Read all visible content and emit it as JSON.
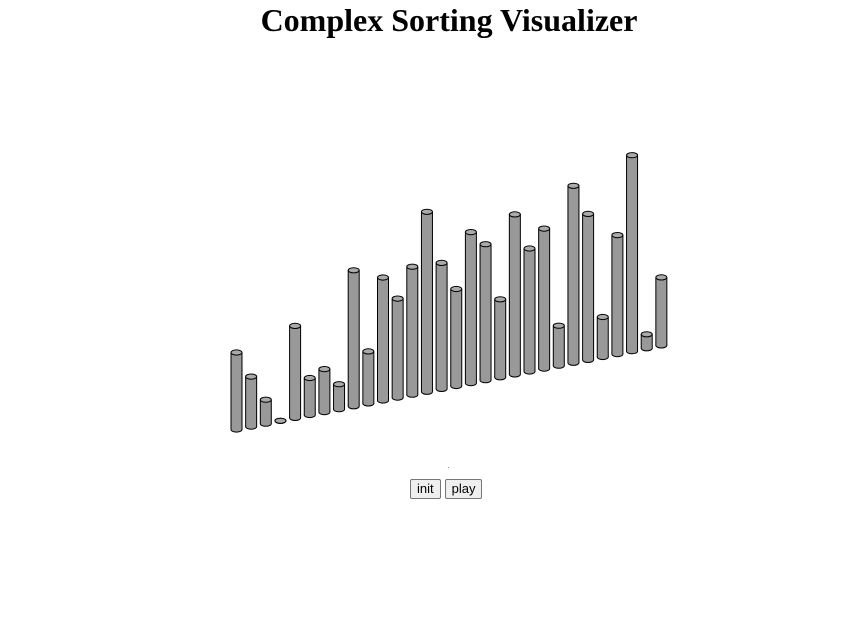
{
  "page": {
    "title": "Complex Sorting Visualizer"
  },
  "controls": {
    "init_label": "init",
    "play_label": "play"
  },
  "visualizer": {
    "bar_fill": "#999999",
    "top_fill": "#aaaaaa",
    "stroke": "#000000",
    "values": [
      77,
      50,
      24,
      0,
      92,
      37,
      43,
      25,
      136,
      52,
      123,
      99,
      128,
      180,
      126,
      97,
      151,
      136,
      78,
      160,
      123,
      140,
      40,
      177,
      146,
      40,
      119,
      196,
      14,
      68
    ]
  }
}
